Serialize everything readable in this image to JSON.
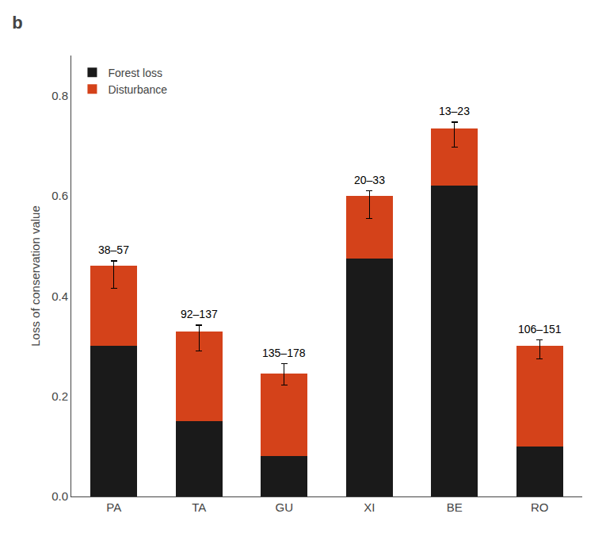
{
  "chart_data": {
    "type": "bar",
    "title": "b",
    "stacked": true,
    "categories": [
      "PA",
      "TA",
      "GU",
      "XI",
      "BE",
      "RO"
    ],
    "series": [
      {
        "name": "Forest loss",
        "color": "#1a1a1a",
        "values": [
          0.3,
          0.15,
          0.08,
          0.475,
          0.62,
          0.1
        ]
      },
      {
        "name": "Disturbance",
        "color": "#d4421a",
        "values": [
          0.16,
          0.18,
          0.165,
          0.125,
          0.115,
          0.2
        ]
      }
    ],
    "error_low": [
      0.045,
      0.04,
      0.022,
      0.045,
      0.038,
      0.025
    ],
    "error_high": [
      0.01,
      0.012,
      0.02,
      0.01,
      0.012,
      0.012
    ],
    "annotations": [
      "38–57",
      "92–137",
      "135–178",
      "20–33",
      "13–23",
      "106–151"
    ],
    "ylabel": "Loss of conservation value",
    "ylim": [
      0,
      0.88
    ],
    "yticks": [
      {
        "value": 0.0,
        "label": "0.0"
      },
      0.2,
      0.4,
      0.6,
      0.8
    ],
    "grid": false,
    "legend": "upper left"
  }
}
